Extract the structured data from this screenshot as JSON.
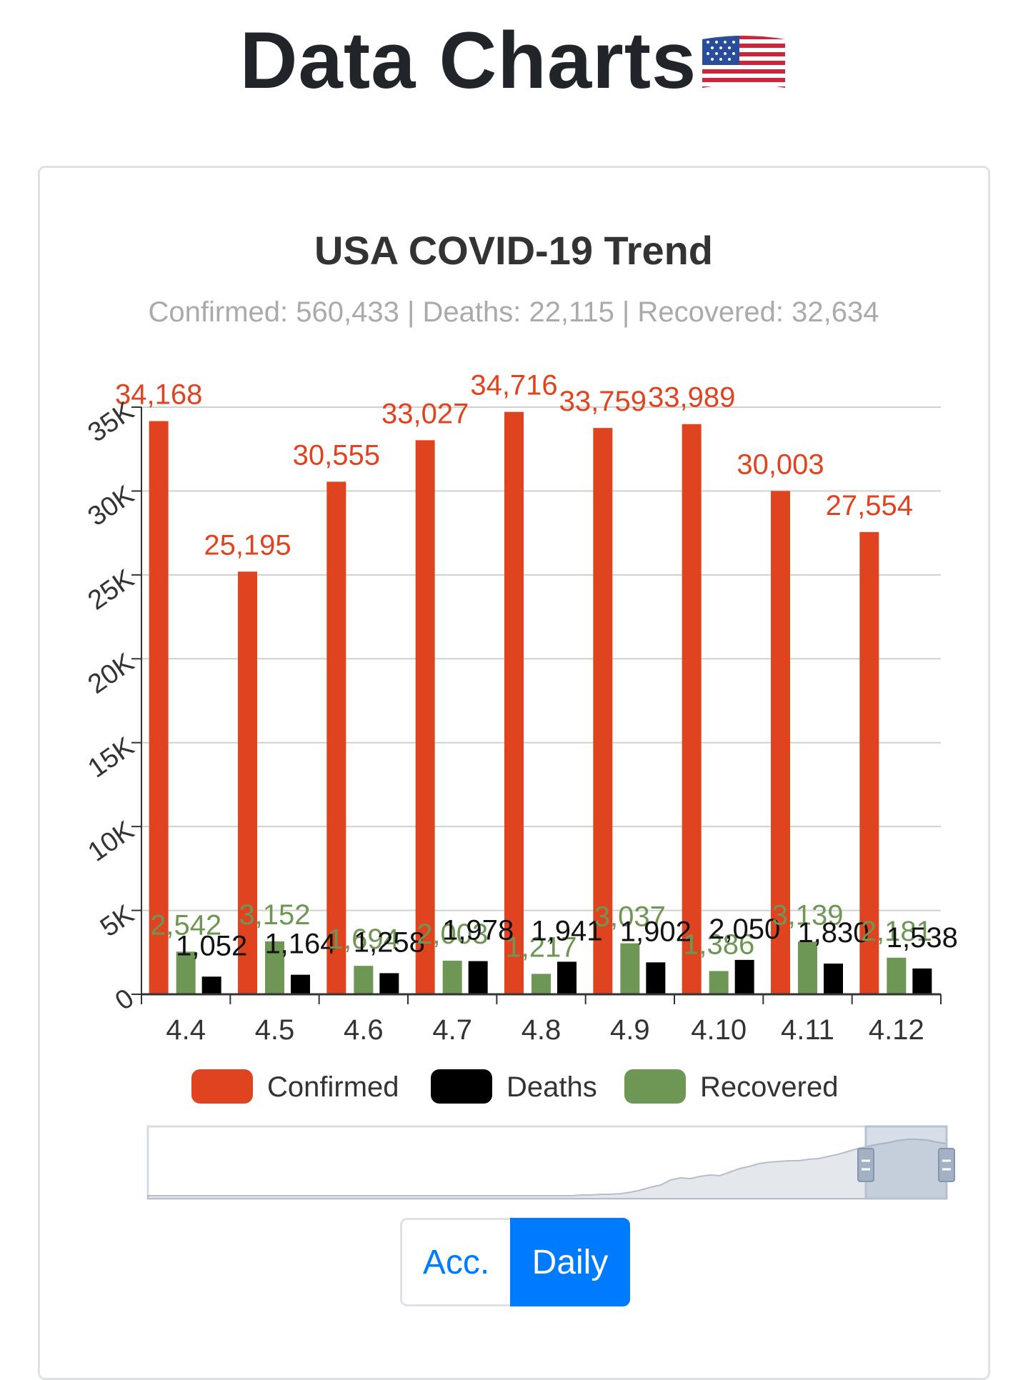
{
  "page": {
    "title": "Data Charts"
  },
  "toggle": {
    "acc_label": "Acc.",
    "daily_label": "Daily",
    "selected": "Daily"
  },
  "colors": {
    "confirmed": "#e0431f",
    "deaths": "#000000",
    "recovered": "#6e9654",
    "active_button": "#007bff"
  },
  "chart_data": {
    "type": "bar",
    "title": "USA COVID-19 Trend",
    "subtitle": "Confirmed: 560,433 | Deaths: 22,115 | Recovered: 32,634",
    "categories": [
      "4.4",
      "4.5",
      "4.6",
      "4.7",
      "4.8",
      "4.9",
      "4.10",
      "4.11",
      "4.12"
    ],
    "series": [
      {
        "name": "Confirmed",
        "values": [
          34168,
          25195,
          30555,
          33027,
          34716,
          33759,
          33989,
          30003,
          27554
        ]
      },
      {
        "name": "Recovered",
        "values": [
          2542,
          3152,
          1694,
          2003,
          1217,
          3037,
          1386,
          3139,
          2181
        ]
      },
      {
        "name": "Deaths",
        "values": [
          1052,
          1164,
          1258,
          1978,
          1941,
          1902,
          2050,
          1830,
          1538
        ]
      }
    ],
    "legend": [
      "Confirmed",
      "Deaths",
      "Recovered"
    ],
    "y_ticks": [
      "0",
      "5K",
      "10K",
      "15K",
      "20K",
      "25K",
      "30K",
      "35K"
    ],
    "ylim": [
      0,
      35000
    ],
    "legend_position": "bottom",
    "grid": true,
    "overview_trend": [
      0,
      0,
      0,
      0,
      0,
      0,
      0,
      0,
      0,
      0,
      0,
      0,
      0,
      0,
      0,
      0,
      0,
      0,
      0,
      0,
      0,
      0,
      0,
      0,
      0,
      0,
      0,
      0,
      0,
      0,
      0,
      0,
      0,
      0,
      0,
      0,
      0,
      0,
      0,
      0,
      0,
      0,
      0,
      0,
      1,
      1,
      2,
      2,
      3,
      5,
      8,
      12,
      15,
      22,
      25,
      24,
      27,
      29,
      28,
      33,
      38,
      41,
      45,
      47,
      48,
      49,
      49,
      51,
      52,
      55,
      58,
      62,
      66,
      69,
      72,
      74,
      77,
      79,
      79,
      78,
      75,
      73
    ]
  }
}
